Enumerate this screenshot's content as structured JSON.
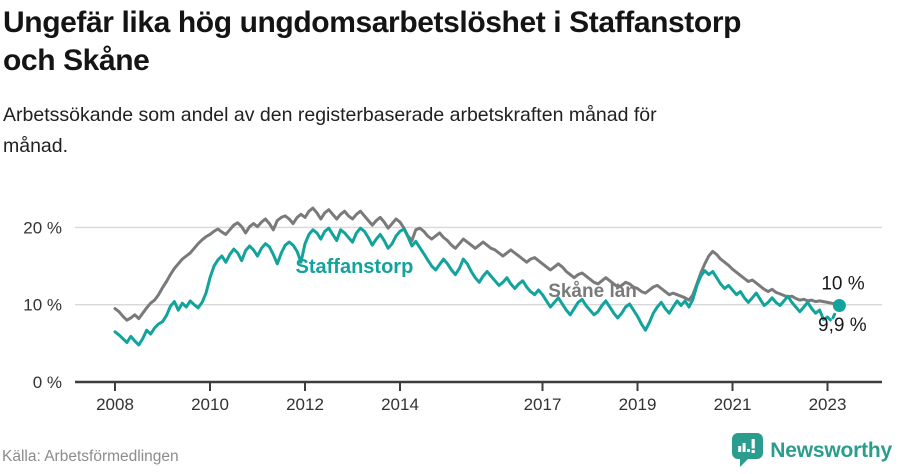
{
  "header": {
    "title_lines": [
      "Ungefär lika hög ungdomsarbetslöshet i Staffanstorp",
      "och Skåne"
    ],
    "subtitle_lines": [
      "Arbetssökande som andel av den registerbaserade arbetskraften månad för",
      "månad."
    ]
  },
  "chart_data": {
    "type": "line",
    "title": "Ungefär lika hög ungdomsarbetslöshet i Staffanstorp och Skåne",
    "subtitle": "Arbetssökande som andel av den registerbaserade arbetskraften månad för månad.",
    "xlabel": "",
    "ylabel": "",
    "x_start_year": 2008,
    "points_per_year": 12,
    "xlim": [
      2008,
      2023.4
    ],
    "ylim": [
      0,
      24
    ],
    "grid": "horizontal",
    "x_axis_ticks": [
      2008,
      2010,
      2012,
      2014,
      2017,
      2019,
      2021,
      2023
    ],
    "y_axis_ticks": [
      0,
      10,
      20
    ],
    "y_tick_suffix": " %",
    "colors": {
      "staffanstorp": "#12a39c",
      "skane": "#7a7a7a",
      "grid": "#d8d8d8",
      "axis": "#3d3d3d",
      "annotation": "#1a1a1a"
    },
    "series": [
      {
        "name": "Skåne län",
        "color": "#7a7a7a",
        "label": {
          "text": "Skåne län",
          "year": 2017.12,
          "value": 11.0,
          "font_size": 19
        },
        "values": [
          9.5,
          9.1,
          8.5,
          8.0,
          8.3,
          8.7,
          8.2,
          8.9,
          9.6,
          10.2,
          10.6,
          11.3,
          12.2,
          13.0,
          13.9,
          14.7,
          15.3,
          15.9,
          16.3,
          16.7,
          17.3,
          17.9,
          18.4,
          18.8,
          19.1,
          19.5,
          19.8,
          19.4,
          19.1,
          19.7,
          20.3,
          20.6,
          20.1,
          19.3,
          20.1,
          20.5,
          20.1,
          20.7,
          21.1,
          20.5,
          19.7,
          20.9,
          21.3,
          21.5,
          21.1,
          20.5,
          21.3,
          21.7,
          21.3,
          22.1,
          22.5,
          21.9,
          21.1,
          21.9,
          22.3,
          21.7,
          21.1,
          21.7,
          22.1,
          21.5,
          21.1,
          21.7,
          22.1,
          21.5,
          20.9,
          20.3,
          20.9,
          21.3,
          20.7,
          19.9,
          20.5,
          21.1,
          20.7,
          19.9,
          18.9,
          18.3,
          19.7,
          19.9,
          19.5,
          18.9,
          18.5,
          18.9,
          19.3,
          18.7,
          18.3,
          17.7,
          17.3,
          17.9,
          18.5,
          18.1,
          17.7,
          17.3,
          17.7,
          18.1,
          17.7,
          17.3,
          17.1,
          16.7,
          16.3,
          16.7,
          17.1,
          16.7,
          16.3,
          15.9,
          15.5,
          15.9,
          16.1,
          15.7,
          15.3,
          14.9,
          14.5,
          14.9,
          15.3,
          14.9,
          14.3,
          13.9,
          13.5,
          13.9,
          14.1,
          13.7,
          13.3,
          12.9,
          12.7,
          13.1,
          13.5,
          13.1,
          12.7,
          12.3,
          12.5,
          12.9,
          12.7,
          12.3,
          12.1,
          11.7,
          11.5,
          11.9,
          12.3,
          12.5,
          12.1,
          11.7,
          11.3,
          11.5,
          11.3,
          11.1,
          10.9,
          10.6,
          11.3,
          12.7,
          14.1,
          15.3,
          16.3,
          16.9,
          16.5,
          15.9,
          15.5,
          15.1,
          14.6,
          14.2,
          13.8,
          13.4,
          13.0,
          13.2,
          12.8,
          12.4,
          12.0,
          11.7,
          12.0,
          11.6,
          11.4,
          11.2,
          11.0,
          11.1,
          10.8,
          10.6,
          10.7,
          10.5,
          10.6,
          10.4,
          10.5,
          10.4,
          10.3,
          10.2,
          10.1,
          10.0
        ]
      },
      {
        "name": "Staffanstorp",
        "color": "#12a39c",
        "label": {
          "text": "Staffanstorp",
          "year": 2011.8,
          "value": 14.1,
          "font_size": 20
        },
        "dashed_from_index": 180,
        "end_dot": true,
        "values": [
          6.5,
          6.1,
          5.6,
          5.1,
          5.9,
          5.3,
          4.8,
          5.6,
          6.7,
          6.2,
          7.0,
          7.5,
          7.8,
          8.6,
          9.8,
          10.4,
          9.3,
          10.2,
          9.7,
          10.5,
          10.0,
          9.6,
          10.3,
          11.5,
          13.5,
          15.0,
          15.8,
          16.3,
          15.5,
          16.5,
          17.2,
          16.7,
          15.7,
          17.0,
          17.6,
          17.1,
          16.3,
          17.3,
          17.9,
          17.5,
          16.5,
          15.3,
          16.7,
          17.7,
          18.1,
          17.7,
          16.9,
          15.5,
          17.9,
          19.1,
          19.7,
          19.3,
          18.5,
          19.5,
          19.9,
          19.1,
          18.3,
          19.7,
          19.3,
          18.7,
          18.1,
          19.3,
          19.9,
          19.5,
          18.7,
          17.7,
          18.5,
          19.1,
          18.3,
          17.3,
          17.9,
          18.9,
          19.5,
          19.8,
          18.8,
          17.6,
          18.2,
          17.4,
          16.6,
          15.8,
          15.0,
          14.5,
          15.2,
          15.9,
          15.3,
          14.5,
          13.9,
          14.7,
          15.9,
          15.3,
          14.3,
          13.5,
          12.9,
          13.7,
          14.3,
          13.7,
          13.1,
          12.5,
          12.9,
          13.5,
          12.7,
          12.1,
          12.7,
          13.1,
          12.3,
          11.7,
          11.3,
          11.9,
          11.3,
          10.5,
          9.7,
          10.3,
          10.9,
          10.1,
          9.3,
          8.7,
          9.5,
          10.3,
          10.7,
          9.9,
          9.3,
          8.7,
          9.1,
          9.9,
          10.5,
          9.7,
          8.9,
          8.3,
          8.9,
          9.7,
          10.1,
          9.3,
          8.5,
          7.5,
          6.7,
          7.7,
          8.9,
          9.7,
          10.3,
          9.5,
          8.9,
          9.7,
          10.5,
          9.9,
          10.5,
          9.7,
          10.7,
          12.5,
          13.7,
          14.4,
          13.9,
          14.3,
          13.5,
          12.7,
          12.1,
          12.5,
          11.9,
          11.3,
          11.7,
          10.9,
          10.3,
          10.9,
          11.5,
          10.7,
          9.9,
          10.3,
          10.9,
          10.3,
          9.9,
          10.5,
          11.1,
          10.3,
          9.7,
          9.1,
          9.7,
          10.3,
          9.5,
          8.9,
          9.3,
          8.1,
          8.4,
          7.9,
          9.0,
          9.9
        ]
      }
    ],
    "annotations": [
      {
        "text": "10 %",
        "year": 2022.87,
        "value": 12.0,
        "refers_to": "Skåne län latest value"
      },
      {
        "text": "9,9 %",
        "year": 2022.8,
        "value": 6.6,
        "refers_to": "Staffanstorp latest value"
      }
    ],
    "legend_position": "inline-labels"
  },
  "footer": {
    "source": "Källa: Arbetsförmedlingen",
    "brand": "Newsworthy"
  }
}
